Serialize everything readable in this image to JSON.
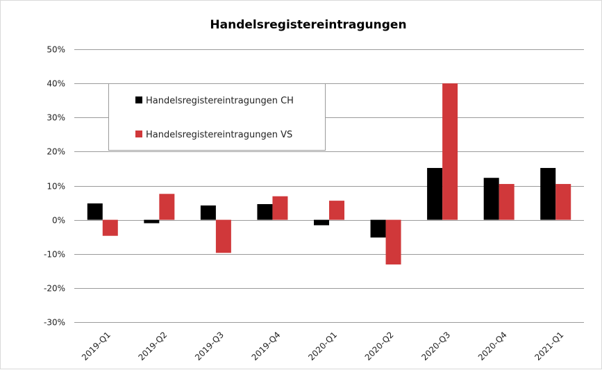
{
  "chart_data": {
    "type": "bar",
    "title": "Handelsregistereintragungen",
    "xlabel": "",
    "ylabel": "",
    "categories": [
      "2019-Q1",
      "2019-Q2",
      "2019-Q3",
      "2019-Q4",
      "2020-Q1",
      "2020-Q2",
      "2020-Q3",
      "2020-Q4",
      "2021-Q1"
    ],
    "ylim": [
      -30,
      50
    ],
    "ytick_step": 10,
    "ytick_suffix": "%",
    "grid": true,
    "legend_position": "top-left",
    "series": [
      {
        "name": "Handelsregistereintragungen CH",
        "color": "#000000",
        "values": [
          4.8,
          -1.0,
          4.2,
          4.6,
          -1.6,
          -5.2,
          15.2,
          12.3,
          15.2
        ]
      },
      {
        "name": "Handelsregistereintragungen VS",
        "color": "#d0383a",
        "values": [
          -4.7,
          7.6,
          -9.7,
          6.9,
          5.6,
          -13.1,
          40.0,
          10.5,
          10.5
        ]
      }
    ]
  }
}
